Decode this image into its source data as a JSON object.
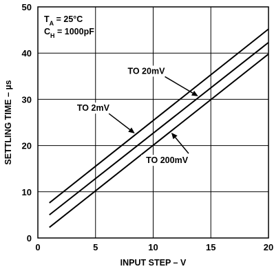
{
  "chart_data": {
    "type": "line",
    "title": "",
    "xlabel": "INPUT STEP – V",
    "ylabel": "SETTLING TIME – µs",
    "xlim": [
      0,
      20
    ],
    "ylim": [
      0,
      50
    ],
    "xticks": [
      0,
      5,
      10,
      15,
      20
    ],
    "yticks": [
      0,
      10,
      20,
      30,
      40,
      50
    ],
    "grid": true,
    "conditions": [
      {
        "main": "T",
        "sub": "A",
        "rest": " = 25°C"
      },
      {
        "main": "C",
        "sub": "H",
        "rest": " = 1000pF"
      }
    ],
    "series": [
      {
        "name": "TO 200mV",
        "x": [
          1,
          20
        ],
        "y": [
          2.3,
          39.8
        ]
      },
      {
        "name": "TO 20mV",
        "x": [
          1,
          20
        ],
        "y": [
          5.0,
          42.3
        ]
      },
      {
        "name": "TO 2mV",
        "x": [
          1,
          20
        ],
        "y": [
          7.6,
          45.2
        ]
      }
    ],
    "annotations": [
      {
        "text": "TO 20mV",
        "series": "TO 20mV",
        "at_x": 14.0,
        "label_x": 9.4,
        "label_y": 35.5
      },
      {
        "text": "TO 2mV",
        "series": "TO 2mV",
        "at_x": 8.5,
        "label_x": 4.8,
        "label_y": 27.5
      },
      {
        "text": "TO 200mV",
        "series": "TO 200mV",
        "at_x": 11.5,
        "label_x": 11.2,
        "label_y": 16.2
      }
    ]
  }
}
